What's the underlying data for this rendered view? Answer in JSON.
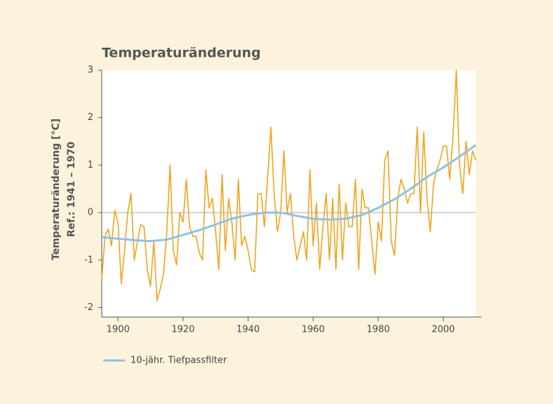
{
  "chart_data": {
    "type": "line",
    "title": "Temperaturänderung",
    "ylabel": [
      "Temperaturänderung [°C]",
      "Ref.: 1941 – 1970"
    ],
    "xlim": [
      1895,
      2010
    ],
    "ylim": [
      -2.2,
      3
    ],
    "xticks": [
      1900,
      1920,
      1940,
      1960,
      1980,
      2000
    ],
    "yticks": [
      -2,
      -1,
      0,
      1,
      2,
      3
    ],
    "legend": "bottom-left",
    "series": [
      {
        "color": "#f2a31b",
        "x": [
          1895,
          1896,
          1897,
          1898,
          1899,
          1900,
          1901,
          1902,
          1903,
          1904,
          1905,
          1906,
          1907,
          1908,
          1909,
          1910,
          1911,
          1912,
          1913,
          1914,
          1915,
          1916,
          1917,
          1918,
          1919,
          1920,
          1921,
          1922,
          1923,
          1924,
          1925,
          1926,
          1927,
          1928,
          1929,
          1930,
          1931,
          1932,
          1933,
          1934,
          1935,
          1936,
          1937,
          1938,
          1939,
          1940,
          1941,
          1942,
          1943,
          1944,
          1945,
          1946,
          1947,
          1948,
          1949,
          1950,
          1951,
          1952,
          1953,
          1954,
          1955,
          1956,
          1957,
          1958,
          1959,
          1960,
          1961,
          1962,
          1963,
          1964,
          1965,
          1966,
          1967,
          1968,
          1969,
          1970,
          1971,
          1972,
          1973,
          1974,
          1975,
          1976,
          1977,
          1978,
          1979,
          1980,
          1981,
          1982,
          1983,
          1984,
          1985,
          1986,
          1987,
          1988,
          1989,
          1990,
          1991,
          1992,
          1993,
          1994,
          1995,
          1996,
          1997,
          1998,
          1999,
          2000,
          2001,
          2002,
          2003,
          2004,
          2005,
          2006,
          2007,
          2008,
          2009,
          2010
        ],
        "values": [
          -1.4,
          -0.5,
          -0.35,
          -0.7,
          0.05,
          -0.2,
          -1.5,
          -0.8,
          0.0,
          0.4,
          -1.0,
          -0.6,
          -0.25,
          -0.3,
          -1.2,
          -1.55,
          -0.6,
          -1.85,
          -1.6,
          -1.3,
          -0.4,
          1.0,
          -0.8,
          -1.1,
          0.0,
          -0.2,
          0.7,
          -0.3,
          -0.5,
          -0.5,
          -0.85,
          -1.0,
          0.9,
          0.1,
          0.3,
          -0.4,
          -1.2,
          0.8,
          -0.8,
          0.3,
          -0.2,
          -1.0,
          0.7,
          -0.7,
          -0.5,
          -0.8,
          -1.2,
          -1.25,
          0.4,
          0.4,
          -0.3,
          0.75,
          1.8,
          0.4,
          -0.4,
          0.0,
          1.3,
          0.0,
          0.4,
          -0.5,
          -1.0,
          -0.7,
          -0.4,
          -1.0,
          0.9,
          -0.7,
          0.2,
          -1.2,
          -0.3,
          0.4,
          -1.0,
          0.3,
          -1.2,
          0.6,
          -1.0,
          0.2,
          -0.3,
          -0.3,
          0.7,
          -1.2,
          0.5,
          0.1,
          0.1,
          -0.6,
          -1.3,
          -0.2,
          -0.6,
          1.1,
          1.3,
          -0.6,
          -0.9,
          0.3,
          0.7,
          0.5,
          0.2,
          0.4,
          0.4,
          1.8,
          0.0,
          1.7,
          0.3,
          -0.4,
          0.6,
          0.9,
          1.1,
          1.4,
          1.4,
          0.7,
          1.6,
          3.0,
          1.0,
          0.4,
          1.5,
          0.8,
          1.3,
          1.1
        ]
      },
      {
        "name": "10-jähr. Tiefpassfilter",
        "color": "#8fc1e3",
        "x": [
          1895,
          1900,
          1905,
          1910,
          1915,
          1920,
          1925,
          1930,
          1935,
          1940,
          1945,
          1950,
          1955,
          1960,
          1965,
          1970,
          1975,
          1980,
          1985,
          1990,
          1995,
          2000,
          2005,
          2010
        ],
        "values": [
          -0.52,
          -0.55,
          -0.58,
          -0.6,
          -0.57,
          -0.47,
          -0.37,
          -0.25,
          -0.13,
          -0.05,
          0.0,
          0.0,
          -0.07,
          -0.13,
          -0.15,
          -0.13,
          -0.05,
          0.1,
          0.28,
          0.5,
          0.75,
          0.95,
          1.18,
          1.42
        ]
      }
    ]
  }
}
